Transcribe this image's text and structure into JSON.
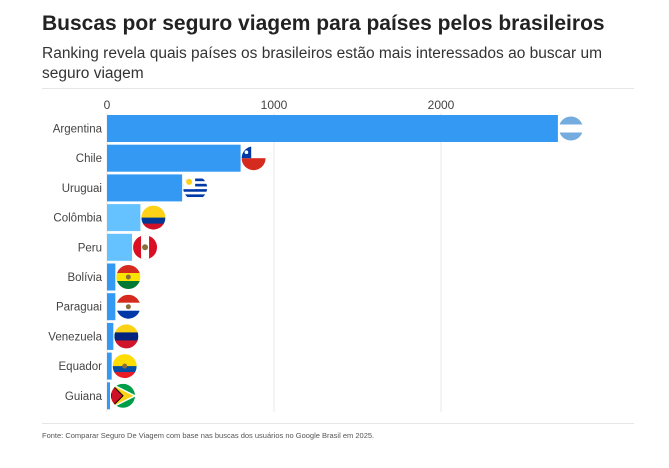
{
  "chart_data": {
    "type": "bar",
    "orientation": "horizontal",
    "title": "Buscas por seguro viagem para países pelos brasileiros",
    "subtitle": "Ranking revela quais países os brasileiros estão mais interessados ao buscar um seguro viagem",
    "categories": [
      "Argentina",
      "Chile",
      "Uruguai",
      "Colômbia",
      "Peru",
      "Bolívia",
      "Paraguai",
      "Venezuela",
      "Equador",
      "Guiana"
    ],
    "values": [
      2700,
      800,
      450,
      200,
      150,
      50,
      50,
      38,
      28,
      18
    ],
    "colors": [
      "#3399f3",
      "#3399f3",
      "#3399f3",
      "#66c2ff",
      "#66c2ff",
      "#3399f3",
      "#3399f3",
      "#3399f3",
      "#3399f3",
      "#3399f3"
    ],
    "xticks": [
      0,
      1000,
      2000
    ],
    "xlim": [
      0,
      3000
    ],
    "grid": true,
    "source": "Fonte: Comparar Seguro De Viagem com base nas buscas dos usuários no Google Brasil em 2025."
  }
}
